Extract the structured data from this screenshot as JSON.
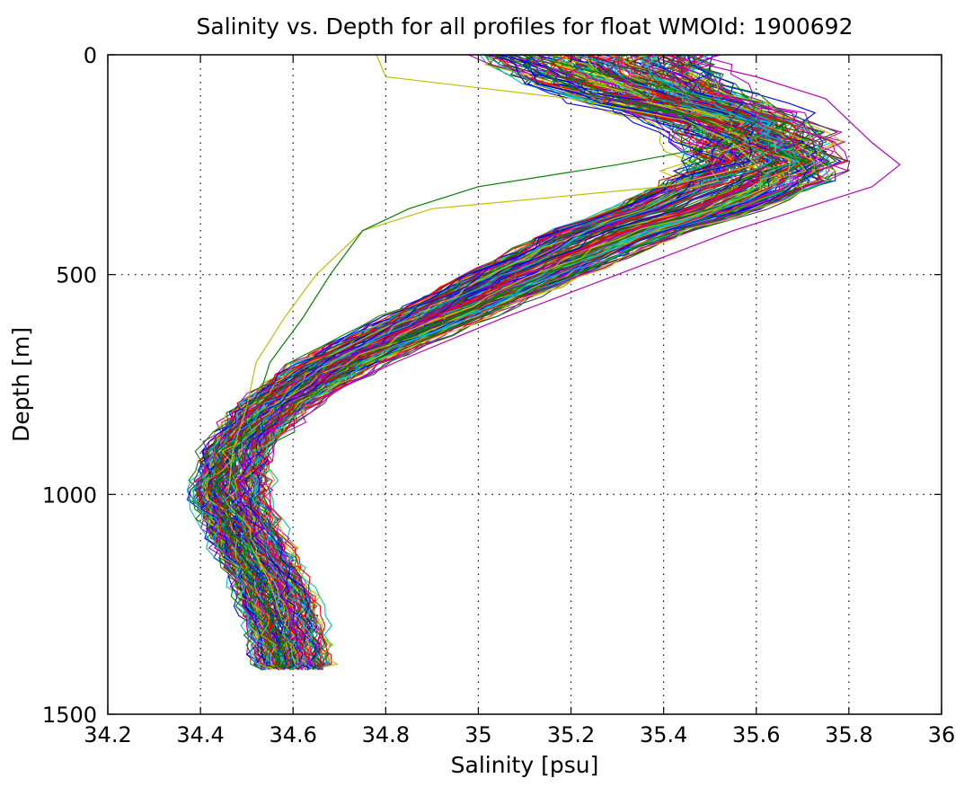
{
  "chart_data": {
    "type": "line",
    "title": "Salinity vs. Depth for all profiles for float WMOId: 1900692",
    "xlabel": "Salinity [psu]",
    "ylabel": "Depth [m]",
    "xlim": [
      34.2,
      36
    ],
    "ylim": [
      0,
      1500
    ],
    "y_reversed": true,
    "grid": true,
    "grid_style": "dotted",
    "legend": "none",
    "x_ticks": [
      "34.2",
      "34.4",
      "34.6",
      "34.8",
      "35",
      "35.2",
      "35.4",
      "35.6",
      "35.8",
      "36"
    ],
    "y_ticks": [
      "0",
      "500",
      "1000",
      "1500"
    ],
    "series_count": 200,
    "series_colors": [
      "#0000ff",
      "#008000",
      "#ff0000",
      "#00bfbf",
      "#bf00bf",
      "#bfbf00",
      "#404040"
    ],
    "profile_depths": [
      0,
      50,
      100,
      150,
      200,
      250,
      300,
      350,
      400,
      500,
      600,
      700,
      800,
      900,
      1000,
      1100,
      1200,
      1300,
      1400
    ],
    "mean_profile_salinity": [
      35.25,
      35.3,
      35.4,
      35.55,
      35.6,
      35.62,
      35.55,
      35.45,
      35.3,
      35.1,
      34.9,
      34.7,
      34.56,
      34.48,
      34.46,
      34.5,
      34.55,
      34.58,
      34.6
    ],
    "outlier_profiles": [
      {
        "salinity": [
          34.78,
          34.8,
          35.2,
          35.45,
          35.55,
          35.6,
          35.4,
          34.9,
          34.75,
          34.65,
          34.58,
          34.52,
          34.5,
          34.47,
          34.46,
          34.5,
          34.55,
          34.58,
          34.6
        ]
      },
      {
        "salinity": [
          35.1,
          35.3,
          35.5,
          35.6,
          35.55,
          35.3,
          35.0,
          34.85,
          34.75,
          34.68,
          34.62,
          34.55,
          34.52,
          34.48,
          34.46,
          34.5,
          34.54,
          34.58,
          34.6
        ]
      },
      {
        "salinity": [
          35.4,
          35.6,
          35.75,
          35.8,
          35.85,
          35.91,
          35.85,
          35.7,
          35.55,
          35.3,
          35.05,
          34.82,
          34.62,
          34.5,
          34.48,
          34.52,
          34.57,
          34.6,
          34.62
        ]
      }
    ]
  }
}
